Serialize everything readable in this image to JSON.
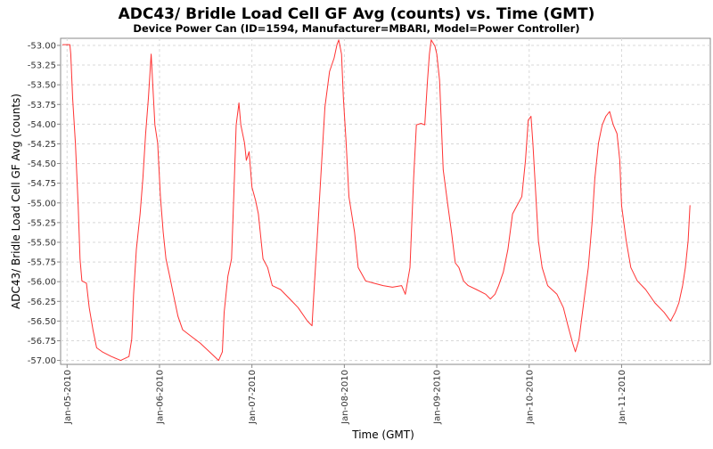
{
  "chart_data": {
    "type": "line",
    "title": "ADC43/ Bridle Load Cell GF Avg (counts) vs. Time (GMT)",
    "subtitle": "Device Power Can (ID=1594, Manufacturer=MBARI, Model=Power Controller)",
    "xlabel": "Time (GMT)",
    "ylabel": "ADC43/ Bridle Load Cell GF Avg (counts)",
    "x_unit": "days since Jan-05-2010 00:00 GMT",
    "xlim": [
      -0.07,
      6.96
    ],
    "ylim": [
      -57.05,
      -52.91
    ],
    "grid": true,
    "line_color": "#ff3333",
    "x_ticks": [
      {
        "value": 0,
        "label": "Jan-05-2010"
      },
      {
        "value": 1,
        "label": "Jan-06-2010"
      },
      {
        "value": 2,
        "label": "Jan-07-2010"
      },
      {
        "value": 3,
        "label": "Jan-08-2010"
      },
      {
        "value": 4,
        "label": "Jan-09-2010"
      },
      {
        "value": 5,
        "label": "Jan-10-2010"
      },
      {
        "value": 6,
        "label": "Jan-11-2010"
      }
    ],
    "y_ticks": [
      {
        "value": -53.0,
        "label": "-53.00"
      },
      {
        "value": -53.25,
        "label": "-53.25"
      },
      {
        "value": -53.5,
        "label": "-53.50"
      },
      {
        "value": -53.75,
        "label": "-53.75"
      },
      {
        "value": -54.0,
        "label": "-54.00"
      },
      {
        "value": -54.25,
        "label": "-54.25"
      },
      {
        "value": -54.5,
        "label": "-54.50"
      },
      {
        "value": -54.75,
        "label": "-54.75"
      },
      {
        "value": -55.0,
        "label": "-55.00"
      },
      {
        "value": -55.25,
        "label": "-55.25"
      },
      {
        "value": -55.5,
        "label": "-55.50"
      },
      {
        "value": -55.75,
        "label": "-55.75"
      },
      {
        "value": -56.0,
        "label": "-56.00"
      },
      {
        "value": -56.25,
        "label": "-56.25"
      },
      {
        "value": -56.5,
        "label": "-56.50"
      },
      {
        "value": -56.75,
        "label": "-56.75"
      },
      {
        "value": -57.0,
        "label": "-57.00"
      }
    ],
    "series": [
      {
        "name": "ADC43/ Bridle Load Cell GF Avg (counts)",
        "x": [
          -0.05,
          0.03,
          0.04,
          0.06,
          0.09,
          0.12,
          0.14,
          0.16,
          0.21,
          0.24,
          0.28,
          0.32,
          0.38,
          0.48,
          0.58,
          0.67,
          0.7,
          0.72,
          0.75,
          0.79,
          0.82,
          0.85,
          0.88,
          0.91,
          0.93,
          0.95,
          0.98,
          1.01,
          1.04,
          1.07,
          1.11,
          1.15,
          1.2,
          1.25,
          1.35,
          1.44,
          1.54,
          1.64,
          1.68,
          1.7,
          1.74,
          1.78,
          1.81,
          1.83,
          1.86,
          1.88,
          1.92,
          1.94,
          1.97,
          2.0,
          2.04,
          2.07,
          2.12,
          2.17,
          2.22,
          2.31,
          2.41,
          2.5,
          2.6,
          2.65,
          2.67,
          2.7,
          2.75,
          2.79,
          2.84,
          2.89,
          2.92,
          2.94,
          2.97,
          2.99,
          3.02,
          3.05,
          3.11,
          3.15,
          3.23,
          3.32,
          3.42,
          3.52,
          3.62,
          3.66,
          3.71,
          3.75,
          3.78,
          3.83,
          3.87,
          3.9,
          3.92,
          3.94,
          3.98,
          4.0,
          4.03,
          4.07,
          4.12,
          4.16,
          4.2,
          4.24,
          4.29,
          4.34,
          4.43,
          4.53,
          4.58,
          4.63,
          4.67,
          4.72,
          4.77,
          4.82,
          4.87,
          4.92,
          4.96,
          4.99,
          5.02,
          5.04,
          5.07,
          5.1,
          5.14,
          5.2,
          5.3,
          5.37,
          5.42,
          5.47,
          5.5,
          5.54,
          5.59,
          5.64,
          5.68,
          5.71,
          5.75,
          5.79,
          5.83,
          5.87,
          5.91,
          5.95,
          5.98,
          6.0,
          6.05,
          6.1,
          6.17,
          6.26,
          6.36,
          6.46,
          6.53,
          6.58,
          6.62,
          6.66,
          6.69,
          6.72,
          6.74
        ],
        "y": [
          -52.99,
          -52.99,
          -53.11,
          -53.67,
          -54.24,
          -55.03,
          -55.71,
          -55.99,
          -56.02,
          -56.33,
          -56.61,
          -56.84,
          -56.89,
          -56.95,
          -57.0,
          -56.95,
          -56.73,
          -56.16,
          -55.59,
          -55.14,
          -54.69,
          -54.12,
          -53.67,
          -53.11,
          -53.56,
          -54.01,
          -54.24,
          -54.92,
          -55.37,
          -55.71,
          -55.93,
          -56.16,
          -56.44,
          -56.61,
          -56.7,
          -56.78,
          -56.89,
          -57.0,
          -56.89,
          -56.39,
          -55.93,
          -55.71,
          -54.69,
          -54.01,
          -53.73,
          -54.01,
          -54.24,
          -54.46,
          -54.35,
          -54.8,
          -54.97,
          -55.14,
          -55.71,
          -55.82,
          -56.05,
          -56.1,
          -56.22,
          -56.33,
          -56.5,
          -56.56,
          -56.16,
          -55.59,
          -54.58,
          -53.78,
          -53.33,
          -53.16,
          -52.99,
          -52.93,
          -53.11,
          -53.67,
          -54.24,
          -54.92,
          -55.37,
          -55.82,
          -55.99,
          -56.02,
          -56.05,
          -56.07,
          -56.05,
          -56.16,
          -55.82,
          -54.69,
          -54.01,
          -53.99,
          -54.01,
          -53.44,
          -53.11,
          -52.93,
          -53.01,
          -53.11,
          -53.44,
          -54.58,
          -55.03,
          -55.37,
          -55.76,
          -55.82,
          -55.99,
          -56.05,
          -56.1,
          -56.16,
          -56.22,
          -56.16,
          -56.05,
          -55.88,
          -55.59,
          -55.14,
          -55.03,
          -54.92,
          -54.46,
          -53.95,
          -53.9,
          -54.24,
          -54.86,
          -55.48,
          -55.82,
          -56.05,
          -56.16,
          -56.33,
          -56.56,
          -56.78,
          -56.89,
          -56.73,
          -56.27,
          -55.82,
          -55.25,
          -54.69,
          -54.24,
          -54.01,
          -53.9,
          -53.84,
          -54.01,
          -54.12,
          -54.46,
          -55.03,
          -55.48,
          -55.82,
          -55.99,
          -56.1,
          -56.27,
          -56.39,
          -56.5,
          -56.39,
          -56.27,
          -56.05,
          -55.82,
          -55.48,
          -55.03
        ]
      }
    ]
  }
}
